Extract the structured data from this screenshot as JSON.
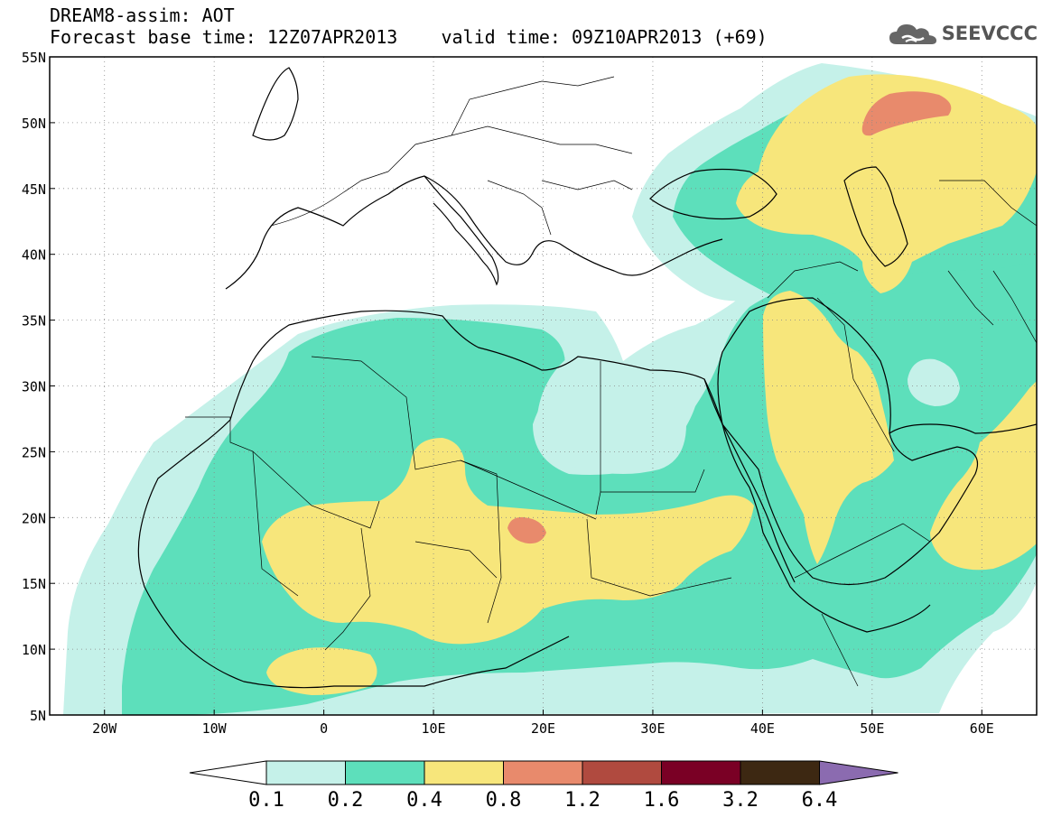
{
  "header": {
    "title": "DREAM8-assim: AOT",
    "forecast_line": "Forecast base time: 12Z07APR2013    valid time: 09Z10APR2013 (+69)"
  },
  "logo": {
    "text": "SEEVCCC",
    "icon": "cloud-icon"
  },
  "map": {
    "lat_labels": [
      "55N",
      "50N",
      "45N",
      "40N",
      "35N",
      "30N",
      "25N",
      "20N",
      "15N",
      "10N",
      "5N"
    ],
    "lon_labels": [
      "20W",
      "10W",
      "0",
      "10E",
      "20E",
      "30E",
      "40E",
      "50E",
      "60E"
    ]
  },
  "colorbar": {
    "labels": [
      "0.1",
      "0.2",
      "0.4",
      "0.8",
      "1.2",
      "1.6",
      "3.2",
      "6.4"
    ],
    "colors": [
      "#ffffff",
      "#c5f1e9",
      "#5ddfbb",
      "#f7e67b",
      "#e88a6c",
      "#b04a3f",
      "#7a0025",
      "#3d2812",
      "#8b6bb0"
    ]
  }
}
